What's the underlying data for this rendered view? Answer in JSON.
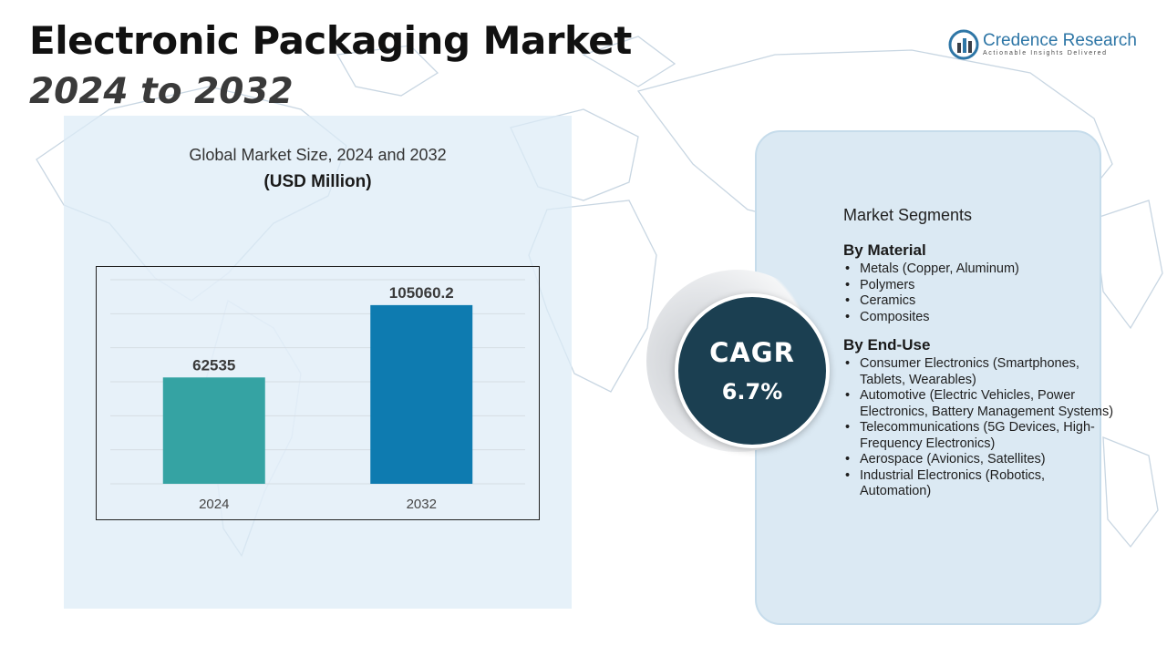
{
  "header": {
    "title": "Electronic Packaging Market",
    "subtitle": "2024 to 2032"
  },
  "logo": {
    "name": "Credence Research",
    "tagline": "Actionable Insights Delivered",
    "icon": "bar-chart-logo-icon"
  },
  "colors": {
    "bar_2024": "#35a3a3",
    "bar_2032": "#0e7bb0",
    "cagr_circle": "#1b3f51",
    "segment_panel": "#dbe9f3"
  },
  "chart_data": {
    "type": "bar",
    "title": "Global Market Size, 2024 and 2032",
    "ylabel": "(USD Million)",
    "categories": [
      "2024",
      "2032"
    ],
    "values": [
      62535,
      105060.2
    ],
    "data_labels": [
      "62535",
      "105060.2"
    ],
    "ylim": [
      0,
      120000
    ],
    "grid": true
  },
  "cagr": {
    "label": "CAGR",
    "value": "6.7%"
  },
  "segments": {
    "heading": "Market Segments",
    "groups": [
      {
        "title": "By Material",
        "items": [
          "Metals (Copper, Aluminum)",
          "Polymers",
          "Ceramics",
          "Composites"
        ]
      },
      {
        "title": "By End-Use",
        "items": [
          "Consumer Electronics (Smartphones, Tablets, Wearables)",
          "Automotive (Electric Vehicles, Power Electronics, Battery Management Systems)",
          "Telecommunications (5G Devices, High-Frequency Electronics)",
          "Aerospace (Avionics, Satellites)",
          "Industrial Electronics (Robotics, Automation)"
        ]
      }
    ]
  }
}
